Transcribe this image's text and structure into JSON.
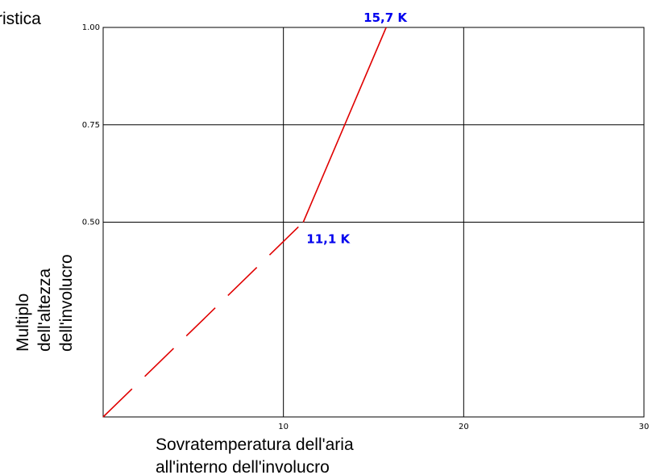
{
  "chart_data": {
    "type": "line",
    "title": "ristica",
    "xlabel": [
      "Sovratemperatura dell'aria",
      "all'interno dell'involucro"
    ],
    "ylabel": [
      "Multiplo",
      "dell'altezza",
      "dell'involucro"
    ],
    "xlim": [
      0,
      30
    ],
    "ylim": [
      0,
      1.0
    ],
    "x_ticks": [
      {
        "value": 10,
        "label": "10"
      },
      {
        "value": 20,
        "label": "20"
      },
      {
        "value": 30,
        "label": "30"
      }
    ],
    "y_ticks": [
      {
        "value": 0.5,
        "label": "0.50"
      },
      {
        "value": 0.75,
        "label": "0.75"
      },
      {
        "value": 1.0,
        "label": "1.00"
      }
    ],
    "grid": true,
    "series": [
      {
        "style": "dashed",
        "color": "#e00000",
        "x": [
          0,
          11.1
        ],
        "y": [
          0,
          0.5
        ]
      },
      {
        "style": "solid",
        "color": "#e00000",
        "x": [
          11.1,
          15.7
        ],
        "y": [
          0.5,
          1.0
        ]
      }
    ],
    "annotations": [
      {
        "text": "11,1 K",
        "x": 11.1,
        "y": 0.5
      },
      {
        "text": "15,7 K",
        "x": 15.7,
        "y": 1.0
      }
    ]
  }
}
